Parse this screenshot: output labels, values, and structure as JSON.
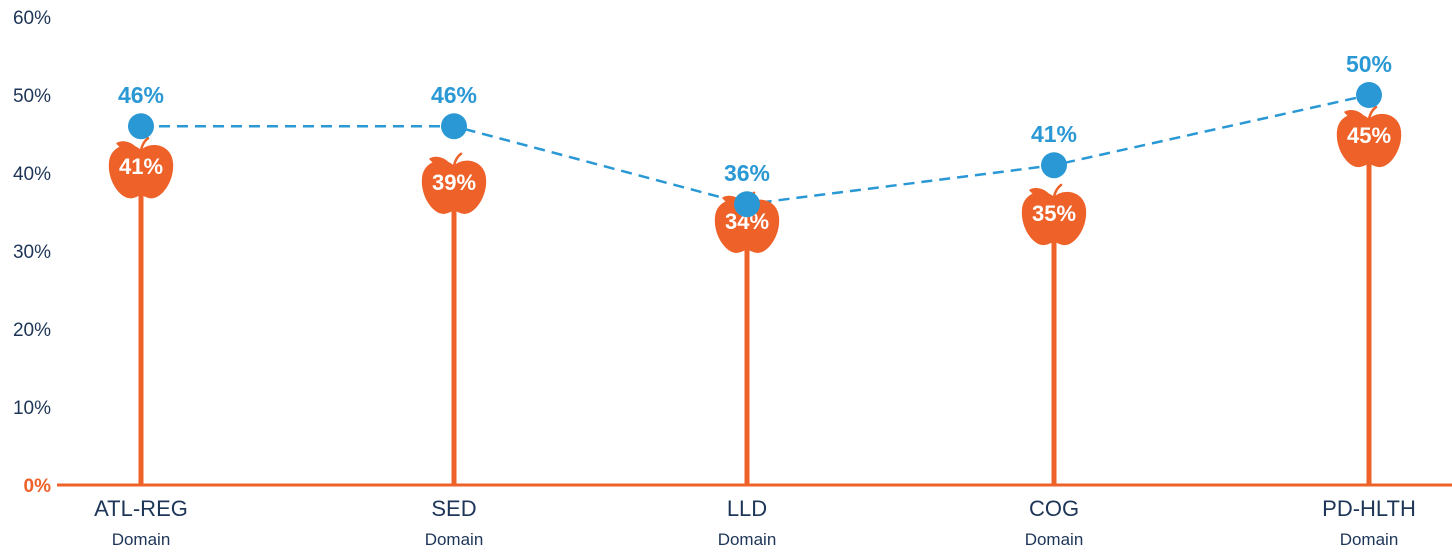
{
  "chart_data": {
    "type": "line",
    "categories": [
      "ATL-REG",
      "SED",
      "LLD",
      "COG",
      "PD-HLTH"
    ],
    "category_sublabel": "Domain",
    "yticks": [
      "0%",
      "10%",
      "20%",
      "30%",
      "40%",
      "50%",
      "60%"
    ],
    "ylim": [
      0,
      60
    ],
    "grid": false,
    "series": [
      {
        "style": "lollipop-apple",
        "color": "#ee6128",
        "values": [
          41,
          39,
          34,
          35,
          45
        ],
        "labels": [
          "41%",
          "39%",
          "34%",
          "35%",
          "45%"
        ]
      },
      {
        "style": "dashed-line-dots",
        "color": "#2a98d4",
        "values": [
          46,
          46,
          36,
          41,
          50
        ],
        "labels": [
          "46%",
          "46%",
          "36%",
          "41%",
          "50%"
        ]
      }
    ]
  },
  "colors": {
    "axis": "#ee6128",
    "text": "#1d3557",
    "leaf": "#ee6128"
  }
}
